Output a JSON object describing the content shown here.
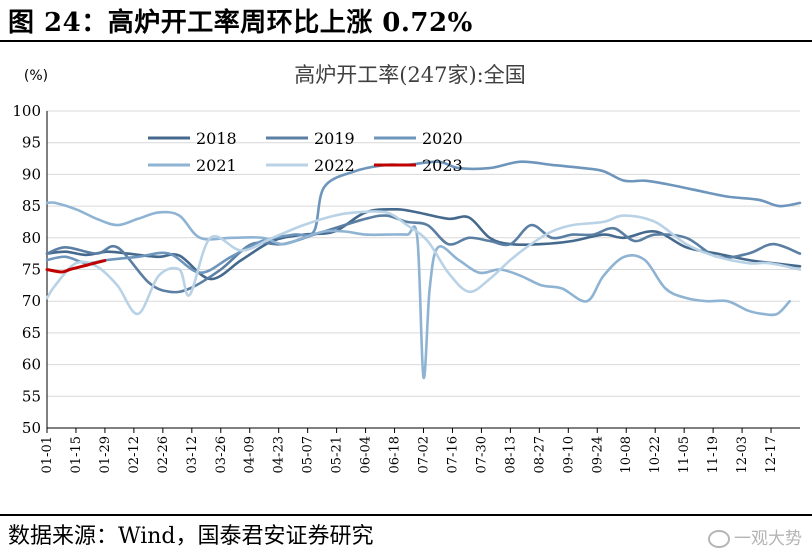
{
  "figure": {
    "title": "图 24：高炉开工率周环比上涨 0.72%",
    "source": "数据来源：Wind，国泰君安证券研究",
    "watermark": "一观大势"
  },
  "chart_data": {
    "type": "line",
    "title": "高炉开工率(247家):全国",
    "unit_label": "(%)",
    "xlabel": "",
    "ylabel": "",
    "ylim": [
      50,
      100
    ],
    "yticks": [
      50,
      55,
      60,
      65,
      70,
      75,
      80,
      85,
      90,
      95,
      100
    ],
    "xlim": [
      1,
      365
    ],
    "x_tick_labels": [
      "01-01",
      "01-15",
      "01-29",
      "02-12",
      "02-26",
      "03-12",
      "03-26",
      "04-09",
      "04-23",
      "05-07",
      "05-21",
      "06-04",
      "06-18",
      "07-02",
      "07-16",
      "07-30",
      "08-13",
      "08-27",
      "09-10",
      "09-24",
      "10-08",
      "10-22",
      "11-05",
      "11-19",
      "12-03",
      "12-17"
    ],
    "x_tick_days": [
      1,
      15,
      29,
      43,
      57,
      71,
      85,
      99,
      113,
      127,
      141,
      155,
      169,
      183,
      197,
      211,
      225,
      239,
      253,
      267,
      281,
      295,
      309,
      323,
      337,
      351
    ],
    "grid": true,
    "legend_position": "top",
    "series": [
      {
        "name": "2018",
        "color": "#44698d",
        "x": [
          1,
          10,
          20,
          30,
          40,
          55,
          65,
          80,
          95,
          110,
          125,
          140,
          155,
          170,
          180,
          195,
          205,
          215,
          225,
          240,
          255,
          270,
          280,
          295,
          310,
          325,
          340,
          352,
          365
        ],
        "y": [
          77.5,
          77.8,
          77.3,
          77.8,
          77.5,
          77.0,
          77.2,
          73.5,
          76.5,
          79.5,
          80.5,
          81.0,
          84.0,
          84.5,
          84.0,
          83.0,
          83.2,
          80.0,
          79.0,
          79.0,
          79.5,
          80.5,
          80.0,
          81.0,
          78.5,
          77.5,
          76.5,
          76.0,
          75.5
        ]
      },
      {
        "name": "2019",
        "color": "#5b7fa3",
        "x": [
          1,
          10,
          25,
          35,
          50,
          60,
          70,
          85,
          100,
          115,
          130,
          140,
          155,
          165,
          175,
          185,
          195,
          205,
          215,
          225,
          235,
          245,
          255,
          265,
          275,
          285,
          295,
          310,
          325,
          340,
          352,
          365
        ],
        "y": [
          77.5,
          78.5,
          77.5,
          78.5,
          73.0,
          71.5,
          72.0,
          75.0,
          79.0,
          79.0,
          80.5,
          81.5,
          83.0,
          83.5,
          82.5,
          82.0,
          79.0,
          80.0,
          79.5,
          79.0,
          82.0,
          80.0,
          80.5,
          80.5,
          81.5,
          79.5,
          80.5,
          80.0,
          77.0,
          77.5,
          79.0,
          77.5
        ]
      },
      {
        "name": "2020",
        "color": "#6e96bc",
        "x": [
          1,
          10,
          20,
          30,
          45,
          60,
          75,
          90,
          105,
          120,
          130,
          135,
          150,
          165,
          175,
          190,
          200,
          215,
          230,
          245,
          260,
          270,
          280,
          290,
          300,
          315,
          330,
          345,
          355,
          365
        ],
        "y": [
          76.5,
          77.0,
          76.0,
          76.5,
          77.0,
          77.5,
          74.5,
          77.0,
          79.5,
          80.5,
          81.0,
          88.0,
          90.5,
          91.5,
          91.5,
          92.0,
          91.0,
          91.0,
          92.0,
          91.5,
          91.0,
          90.5,
          89.0,
          89.0,
          88.5,
          87.5,
          86.5,
          86.0,
          85.0,
          85.5
        ]
      },
      {
        "name": "2021",
        "color": "#8eb3d3",
        "x": [
          1,
          5,
          15,
          25,
          35,
          45,
          55,
          65,
          75,
          90,
          105,
          115,
          125,
          135,
          145,
          155,
          165,
          175,
          180,
          183,
          186,
          190,
          200,
          210,
          220,
          230,
          240,
          250,
          262,
          270,
          280,
          290,
          300,
          310,
          320,
          330,
          340,
          347,
          354,
          360
        ],
        "y": [
          85.5,
          85.5,
          84.5,
          83.0,
          82.0,
          83.0,
          84.0,
          83.5,
          80.0,
          80.0,
          80.0,
          79.0,
          80.0,
          81.0,
          81.0,
          80.5,
          80.5,
          80.5,
          80.0,
          58.0,
          72.0,
          78.5,
          76.5,
          74.5,
          75.0,
          74.0,
          72.5,
          72.0,
          70.0,
          74.0,
          77.0,
          76.5,
          72.0,
          70.5,
          70.0,
          70.0,
          68.5,
          68.0,
          68.0,
          70.0
        ]
      },
      {
        "name": "2022",
        "color": "#b9d2e6",
        "x": [
          1,
          5,
          15,
          25,
          35,
          45,
          55,
          65,
          70,
          80,
          95,
          110,
          125,
          140,
          150,
          165,
          175,
          185,
          195,
          205,
          215,
          225,
          235,
          245,
          255,
          270,
          280,
          295,
          310,
          325,
          340,
          350,
          365
        ],
        "y": [
          70.5,
          72.5,
          76.0,
          75.5,
          72.5,
          68.0,
          74.0,
          75.0,
          71.0,
          80.0,
          78.0,
          80.0,
          82.0,
          83.5,
          84.0,
          84.0,
          82.0,
          79.5,
          74.5,
          71.5,
          73.5,
          76.5,
          79.0,
          81.0,
          82.0,
          82.5,
          83.5,
          82.5,
          79.0,
          77.0,
          76.0,
          76.0,
          75.0
        ]
      },
      {
        "name": "2023",
        "color": "#c00000",
        "x": [
          1,
          8,
          12,
          18,
          24,
          29
        ],
        "y": [
          75.0,
          74.6,
          75.0,
          75.5,
          76.0,
          76.4
        ]
      }
    ]
  }
}
